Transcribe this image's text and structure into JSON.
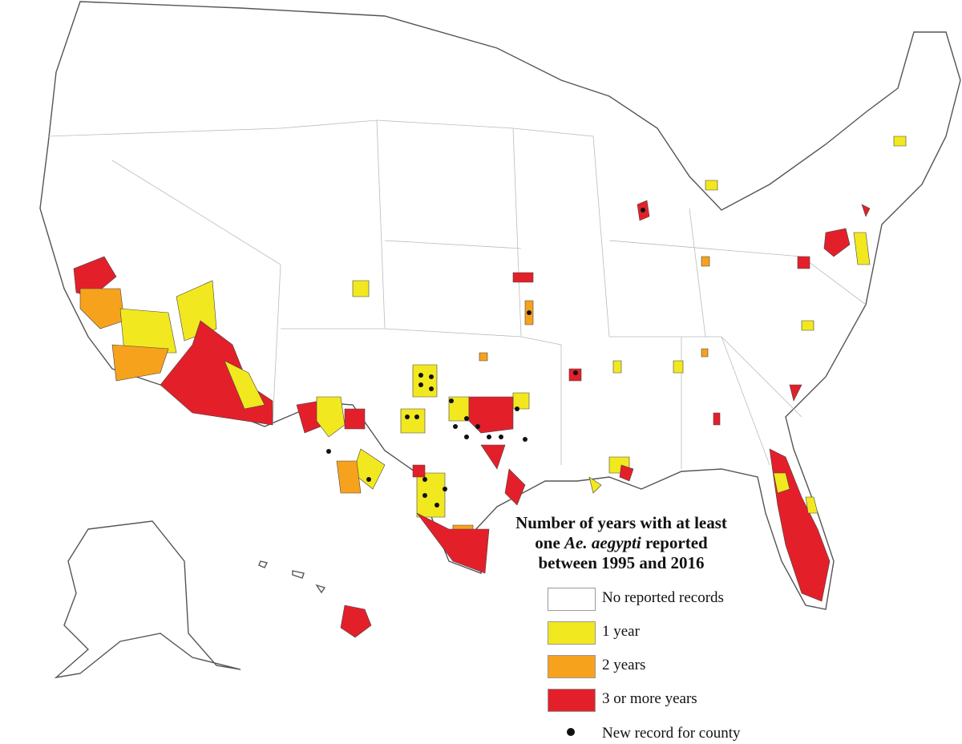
{
  "legend": {
    "title_parts": [
      "Number of years with at least one ",
      "Ae. aegypti",
      " reported between 1995 and 2016"
    ],
    "items": [
      {
        "label": "No reported records",
        "color": "#ffffff"
      },
      {
        "label": "1 year",
        "color": "#f2e81f"
      },
      {
        "label": "2 years",
        "color": "#f7a21d"
      },
      {
        "label": "3 or more years",
        "color": "#e3202a"
      }
    ],
    "marker_label": "New record for county",
    "marker_color": "#111111"
  }
}
